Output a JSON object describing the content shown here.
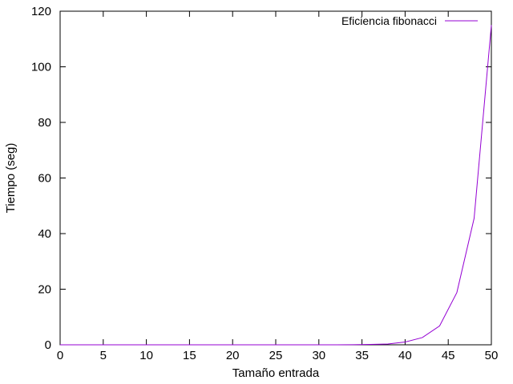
{
  "chart_data": {
    "type": "line",
    "title": "",
    "xlabel": "Tamaño entrada",
    "ylabel": "Tiempo (seg)",
    "xlim": [
      0,
      50
    ],
    "ylim": [
      0,
      120
    ],
    "xticks": [
      0,
      5,
      10,
      15,
      20,
      25,
      30,
      35,
      40,
      45,
      50
    ],
    "yticks": [
      0,
      20,
      40,
      60,
      80,
      100,
      120
    ],
    "grid": false,
    "legend_position": "top-right",
    "series": [
      {
        "name": "Eficiencia fibonacci",
        "color": "#9400d3",
        "x": [
          0,
          2,
          4,
          6,
          8,
          10,
          12,
          14,
          16,
          18,
          20,
          22,
          24,
          26,
          28,
          30,
          32,
          34,
          36,
          38,
          40,
          42,
          44,
          46,
          48,
          50
        ],
        "y": [
          0,
          0,
          0,
          0,
          0,
          0,
          0,
          0,
          0,
          0,
          0,
          0,
          0,
          0,
          0,
          0,
          0.01,
          0.03,
          0.15,
          0.3,
          1.0,
          2.6,
          6.8,
          18.8,
          45.5,
          115
        ]
      }
    ]
  }
}
